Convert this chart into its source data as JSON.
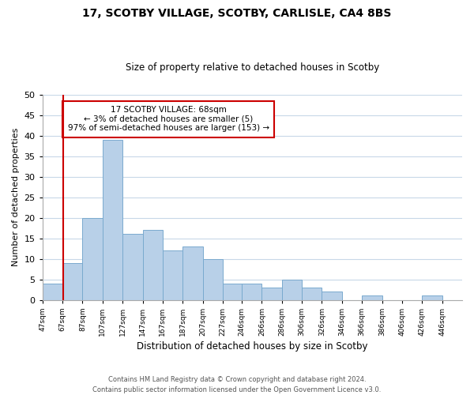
{
  "title": "17, SCOTBY VILLAGE, SCOTBY, CARLISLE, CA4 8BS",
  "subtitle": "Size of property relative to detached houses in Scotby",
  "xlabel": "Distribution of detached houses by size in Scotby",
  "ylabel": "Number of detached properties",
  "bar_color": "#b8d0e8",
  "bar_edge_color": "#7aaace",
  "marker_line_color": "#cc0000",
  "marker_value": 68,
  "annotation_title": "17 SCOTBY VILLAGE: 68sqm",
  "annotation_line1": "← 3% of detached houses are smaller (5)",
  "annotation_line2": "97% of semi-detached houses are larger (153) →",
  "bins_left": [
    47,
    67,
    87,
    107,
    127,
    147,
    167,
    187,
    207,
    227,
    246,
    266,
    286,
    306,
    326,
    346,
    366,
    386,
    406,
    426
  ],
  "bin_widths": [
    20,
    20,
    20,
    20,
    20,
    20,
    20,
    20,
    20,
    19,
    20,
    20,
    20,
    20,
    20,
    20,
    20,
    20,
    20,
    20
  ],
  "counts": [
    4,
    9,
    20,
    39,
    16,
    17,
    12,
    13,
    10,
    4,
    4,
    3,
    5,
    3,
    2,
    0,
    1,
    0,
    0,
    1
  ],
  "tick_positions": [
    47,
    67,
    87,
    107,
    127,
    147,
    167,
    187,
    207,
    227,
    246,
    266,
    286,
    306,
    326,
    346,
    366,
    386,
    406,
    426,
    446
  ],
  "tick_labels": [
    "47sqm",
    "67sqm",
    "87sqm",
    "107sqm",
    "127sqm",
    "147sqm",
    "167sqm",
    "187sqm",
    "207sqm",
    "227sqm",
    "246sqm",
    "266sqm",
    "286sqm",
    "306sqm",
    "326sqm",
    "346sqm",
    "366sqm",
    "386sqm",
    "406sqm",
    "426sqm",
    "446sqm"
  ],
  "ylim": [
    0,
    50
  ],
  "yticks": [
    0,
    5,
    10,
    15,
    20,
    25,
    30,
    35,
    40,
    45,
    50
  ],
  "footer1": "Contains HM Land Registry data © Crown copyright and database right 2024.",
  "footer2": "Contains public sector information licensed under the Open Government Licence v3.0.",
  "background_color": "#ffffff",
  "grid_color": "#c8d8e8"
}
